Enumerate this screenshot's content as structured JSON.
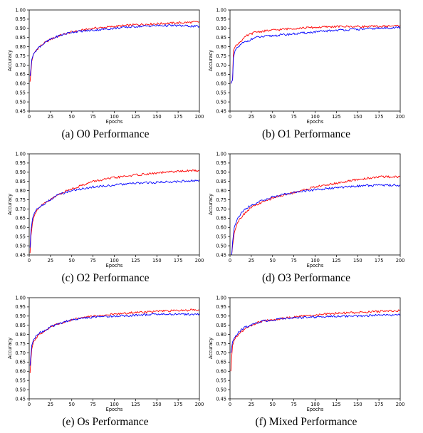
{
  "chart_data": [
    {
      "type": "line",
      "caption": "(a)  O0 Performance",
      "xlabel": "Epochs",
      "ylabel": "Accuracy",
      "xlim": [
        0,
        200
      ],
      "ylim": [
        0.45,
        1.0
      ],
      "xticks": [
        "0",
        "25",
        "50",
        "75",
        "100",
        "125",
        "150",
        "175",
        "200"
      ],
      "yticks": [
        "0.45",
        "0.50",
        "0.55",
        "0.60",
        "0.65",
        "0.70",
        "0.75",
        "0.80",
        "0.85",
        "0.90",
        "0.95",
        "1.00"
      ],
      "series": [
        {
          "color": "#ff0000",
          "x": [
            1,
            2,
            3,
            5,
            8,
            12,
            18,
            25,
            35,
            50,
            75,
            100,
            125,
            150,
            175,
            200
          ],
          "y": [
            0.61,
            0.66,
            0.72,
            0.76,
            0.78,
            0.8,
            0.82,
            0.84,
            0.86,
            0.88,
            0.9,
            0.91,
            0.92,
            0.925,
            0.93,
            0.935
          ]
        },
        {
          "color": "#0000ff",
          "x": [
            1,
            2,
            3,
            5,
            8,
            12,
            18,
            25,
            35,
            50,
            75,
            100,
            125,
            150,
            175,
            200
          ],
          "y": [
            0.64,
            0.68,
            0.73,
            0.76,
            0.78,
            0.8,
            0.82,
            0.84,
            0.86,
            0.88,
            0.89,
            0.9,
            0.91,
            0.915,
            0.915,
            0.91
          ]
        }
      ]
    },
    {
      "type": "line",
      "caption": "(b)  O1 Performance",
      "xlabel": "Epochs",
      "ylabel": "Accuracy",
      "xlim": [
        0,
        200
      ],
      "ylim": [
        0.45,
        1.0
      ],
      "xticks": [
        "0",
        "25",
        "50",
        "75",
        "100",
        "125",
        "150",
        "175",
        "200"
      ],
      "yticks": [
        "0.45",
        "0.50",
        "0.55",
        "0.60",
        "0.65",
        "0.70",
        "0.75",
        "0.80",
        "0.85",
        "0.90",
        "0.95",
        "1.00"
      ],
      "series": [
        {
          "color": "#ff0000",
          "x": [
            1,
            3,
            4,
            6,
            10,
            15,
            20,
            30,
            50,
            75,
            100,
            125,
            150,
            175,
            200
          ],
          "y": [
            0.6,
            0.62,
            0.78,
            0.8,
            0.82,
            0.84,
            0.86,
            0.88,
            0.89,
            0.9,
            0.905,
            0.91,
            0.91,
            0.91,
            0.915
          ]
        },
        {
          "color": "#0000ff",
          "x": [
            1,
            3,
            4,
            6,
            10,
            15,
            20,
            30,
            50,
            75,
            100,
            125,
            150,
            175,
            200
          ],
          "y": [
            0.6,
            0.62,
            0.74,
            0.78,
            0.8,
            0.82,
            0.83,
            0.85,
            0.86,
            0.87,
            0.88,
            0.89,
            0.895,
            0.9,
            0.905
          ]
        }
      ]
    },
    {
      "type": "line",
      "caption": "(c)  O2 Performance",
      "xlabel": "Epochs",
      "ylabel": "Accuracy",
      "xlim": [
        0,
        200
      ],
      "ylim": [
        0.45,
        1.0
      ],
      "xticks": [
        "0",
        "25",
        "50",
        "75",
        "100",
        "125",
        "150",
        "175",
        "200"
      ],
      "yticks": [
        "0.45",
        "0.50",
        "0.55",
        "0.60",
        "0.65",
        "0.70",
        "0.75",
        "0.80",
        "0.85",
        "0.90",
        "0.95",
        "1.00"
      ],
      "series": [
        {
          "color": "#ff0000",
          "x": [
            1,
            2,
            4,
            7,
            10,
            15,
            25,
            35,
            50,
            75,
            100,
            125,
            150,
            175,
            200
          ],
          "y": [
            0.46,
            0.55,
            0.63,
            0.68,
            0.7,
            0.72,
            0.75,
            0.78,
            0.81,
            0.85,
            0.87,
            0.885,
            0.895,
            0.905,
            0.91
          ]
        },
        {
          "color": "#0000ff",
          "x": [
            1,
            2,
            4,
            7,
            10,
            15,
            25,
            35,
            50,
            75,
            100,
            125,
            150,
            175,
            200
          ],
          "y": [
            0.49,
            0.58,
            0.65,
            0.69,
            0.7,
            0.72,
            0.75,
            0.78,
            0.8,
            0.82,
            0.83,
            0.84,
            0.845,
            0.85,
            0.855
          ]
        }
      ]
    },
    {
      "type": "line",
      "caption": "(d)  O3 Performance",
      "xlabel": "Epochs",
      "ylabel": "Accuracy",
      "xlim": [
        0,
        200
      ],
      "ylim": [
        0.45,
        1.0
      ],
      "xticks": [
        "0",
        "25",
        "50",
        "75",
        "100",
        "125",
        "150",
        "175",
        "200"
      ],
      "yticks": [
        "0.45",
        "0.50",
        "0.55",
        "0.60",
        "0.65",
        "0.70",
        "0.75",
        "0.80",
        "0.85",
        "0.90",
        "0.95",
        "1.00"
      ],
      "series": [
        {
          "color": "#ff0000",
          "x": [
            2,
            3,
            5,
            8,
            12,
            18,
            25,
            35,
            50,
            75,
            100,
            125,
            150,
            175,
            200
          ],
          "y": [
            0.45,
            0.5,
            0.57,
            0.62,
            0.65,
            0.68,
            0.71,
            0.73,
            0.76,
            0.79,
            0.82,
            0.84,
            0.86,
            0.875,
            0.875
          ]
        },
        {
          "color": "#0000ff",
          "x": [
            2,
            3,
            5,
            8,
            12,
            18,
            25,
            35,
            50,
            75,
            100,
            125,
            150,
            175,
            200
          ],
          "y": [
            0.45,
            0.52,
            0.6,
            0.64,
            0.67,
            0.7,
            0.72,
            0.74,
            0.765,
            0.79,
            0.805,
            0.815,
            0.825,
            0.83,
            0.83
          ]
        }
      ]
    },
    {
      "type": "line",
      "caption": "(e)  Os Performance",
      "xlabel": "Epochs",
      "ylabel": "Accuracy",
      "xlim": [
        0,
        200
      ],
      "ylim": [
        0.45,
        1.0
      ],
      "xticks": [
        "0",
        "25",
        "50",
        "75",
        "100",
        "125",
        "150",
        "175",
        "200"
      ],
      "yticks": [
        "0.45",
        "0.50",
        "0.55",
        "0.60",
        "0.65",
        "0.70",
        "0.75",
        "0.80",
        "0.85",
        "0.90",
        "0.95",
        "1.00"
      ],
      "series": [
        {
          "color": "#ff0000",
          "x": [
            1,
            2,
            3,
            5,
            8,
            12,
            18,
            25,
            35,
            50,
            75,
            100,
            125,
            150,
            175,
            200
          ],
          "y": [
            0.59,
            0.66,
            0.72,
            0.76,
            0.78,
            0.8,
            0.82,
            0.84,
            0.86,
            0.88,
            0.9,
            0.91,
            0.92,
            0.925,
            0.93,
            0.935
          ]
        },
        {
          "color": "#0000ff",
          "x": [
            1,
            2,
            3,
            5,
            8,
            12,
            18,
            25,
            35,
            50,
            75,
            100,
            125,
            150,
            175,
            200
          ],
          "y": [
            0.63,
            0.69,
            0.74,
            0.77,
            0.79,
            0.81,
            0.82,
            0.84,
            0.86,
            0.88,
            0.895,
            0.9,
            0.905,
            0.91,
            0.91,
            0.91
          ]
        }
      ]
    },
    {
      "type": "line",
      "caption": "(f)  Mixed Performance",
      "xlabel": "Epochs",
      "ylabel": "Accuracy",
      "xlim": [
        0,
        200
      ],
      "ylim": [
        0.45,
        1.0
      ],
      "xticks": [
        "0",
        "25",
        "50",
        "75",
        "100",
        "125",
        "150",
        "175",
        "200"
      ],
      "yticks": [
        "0.45",
        "0.50",
        "0.55",
        "0.60",
        "0.65",
        "0.70",
        "0.75",
        "0.80",
        "0.85",
        "0.90",
        "0.95",
        "1.00"
      ],
      "series": [
        {
          "color": "#ff0000",
          "x": [
            1,
            2,
            3,
            5,
            8,
            12,
            18,
            25,
            35,
            50,
            75,
            100,
            125,
            150,
            175,
            200
          ],
          "y": [
            0.6,
            0.68,
            0.74,
            0.77,
            0.79,
            0.81,
            0.83,
            0.85,
            0.87,
            0.88,
            0.895,
            0.905,
            0.915,
            0.92,
            0.925,
            0.93
          ]
        },
        {
          "color": "#0000ff",
          "x": [
            1,
            2,
            3,
            5,
            8,
            12,
            18,
            25,
            35,
            50,
            75,
            100,
            125,
            150,
            175,
            200
          ],
          "y": [
            0.7,
            0.73,
            0.76,
            0.78,
            0.8,
            0.82,
            0.84,
            0.85,
            0.87,
            0.88,
            0.89,
            0.895,
            0.9,
            0.9,
            0.905,
            0.905
          ]
        }
      ]
    }
  ]
}
